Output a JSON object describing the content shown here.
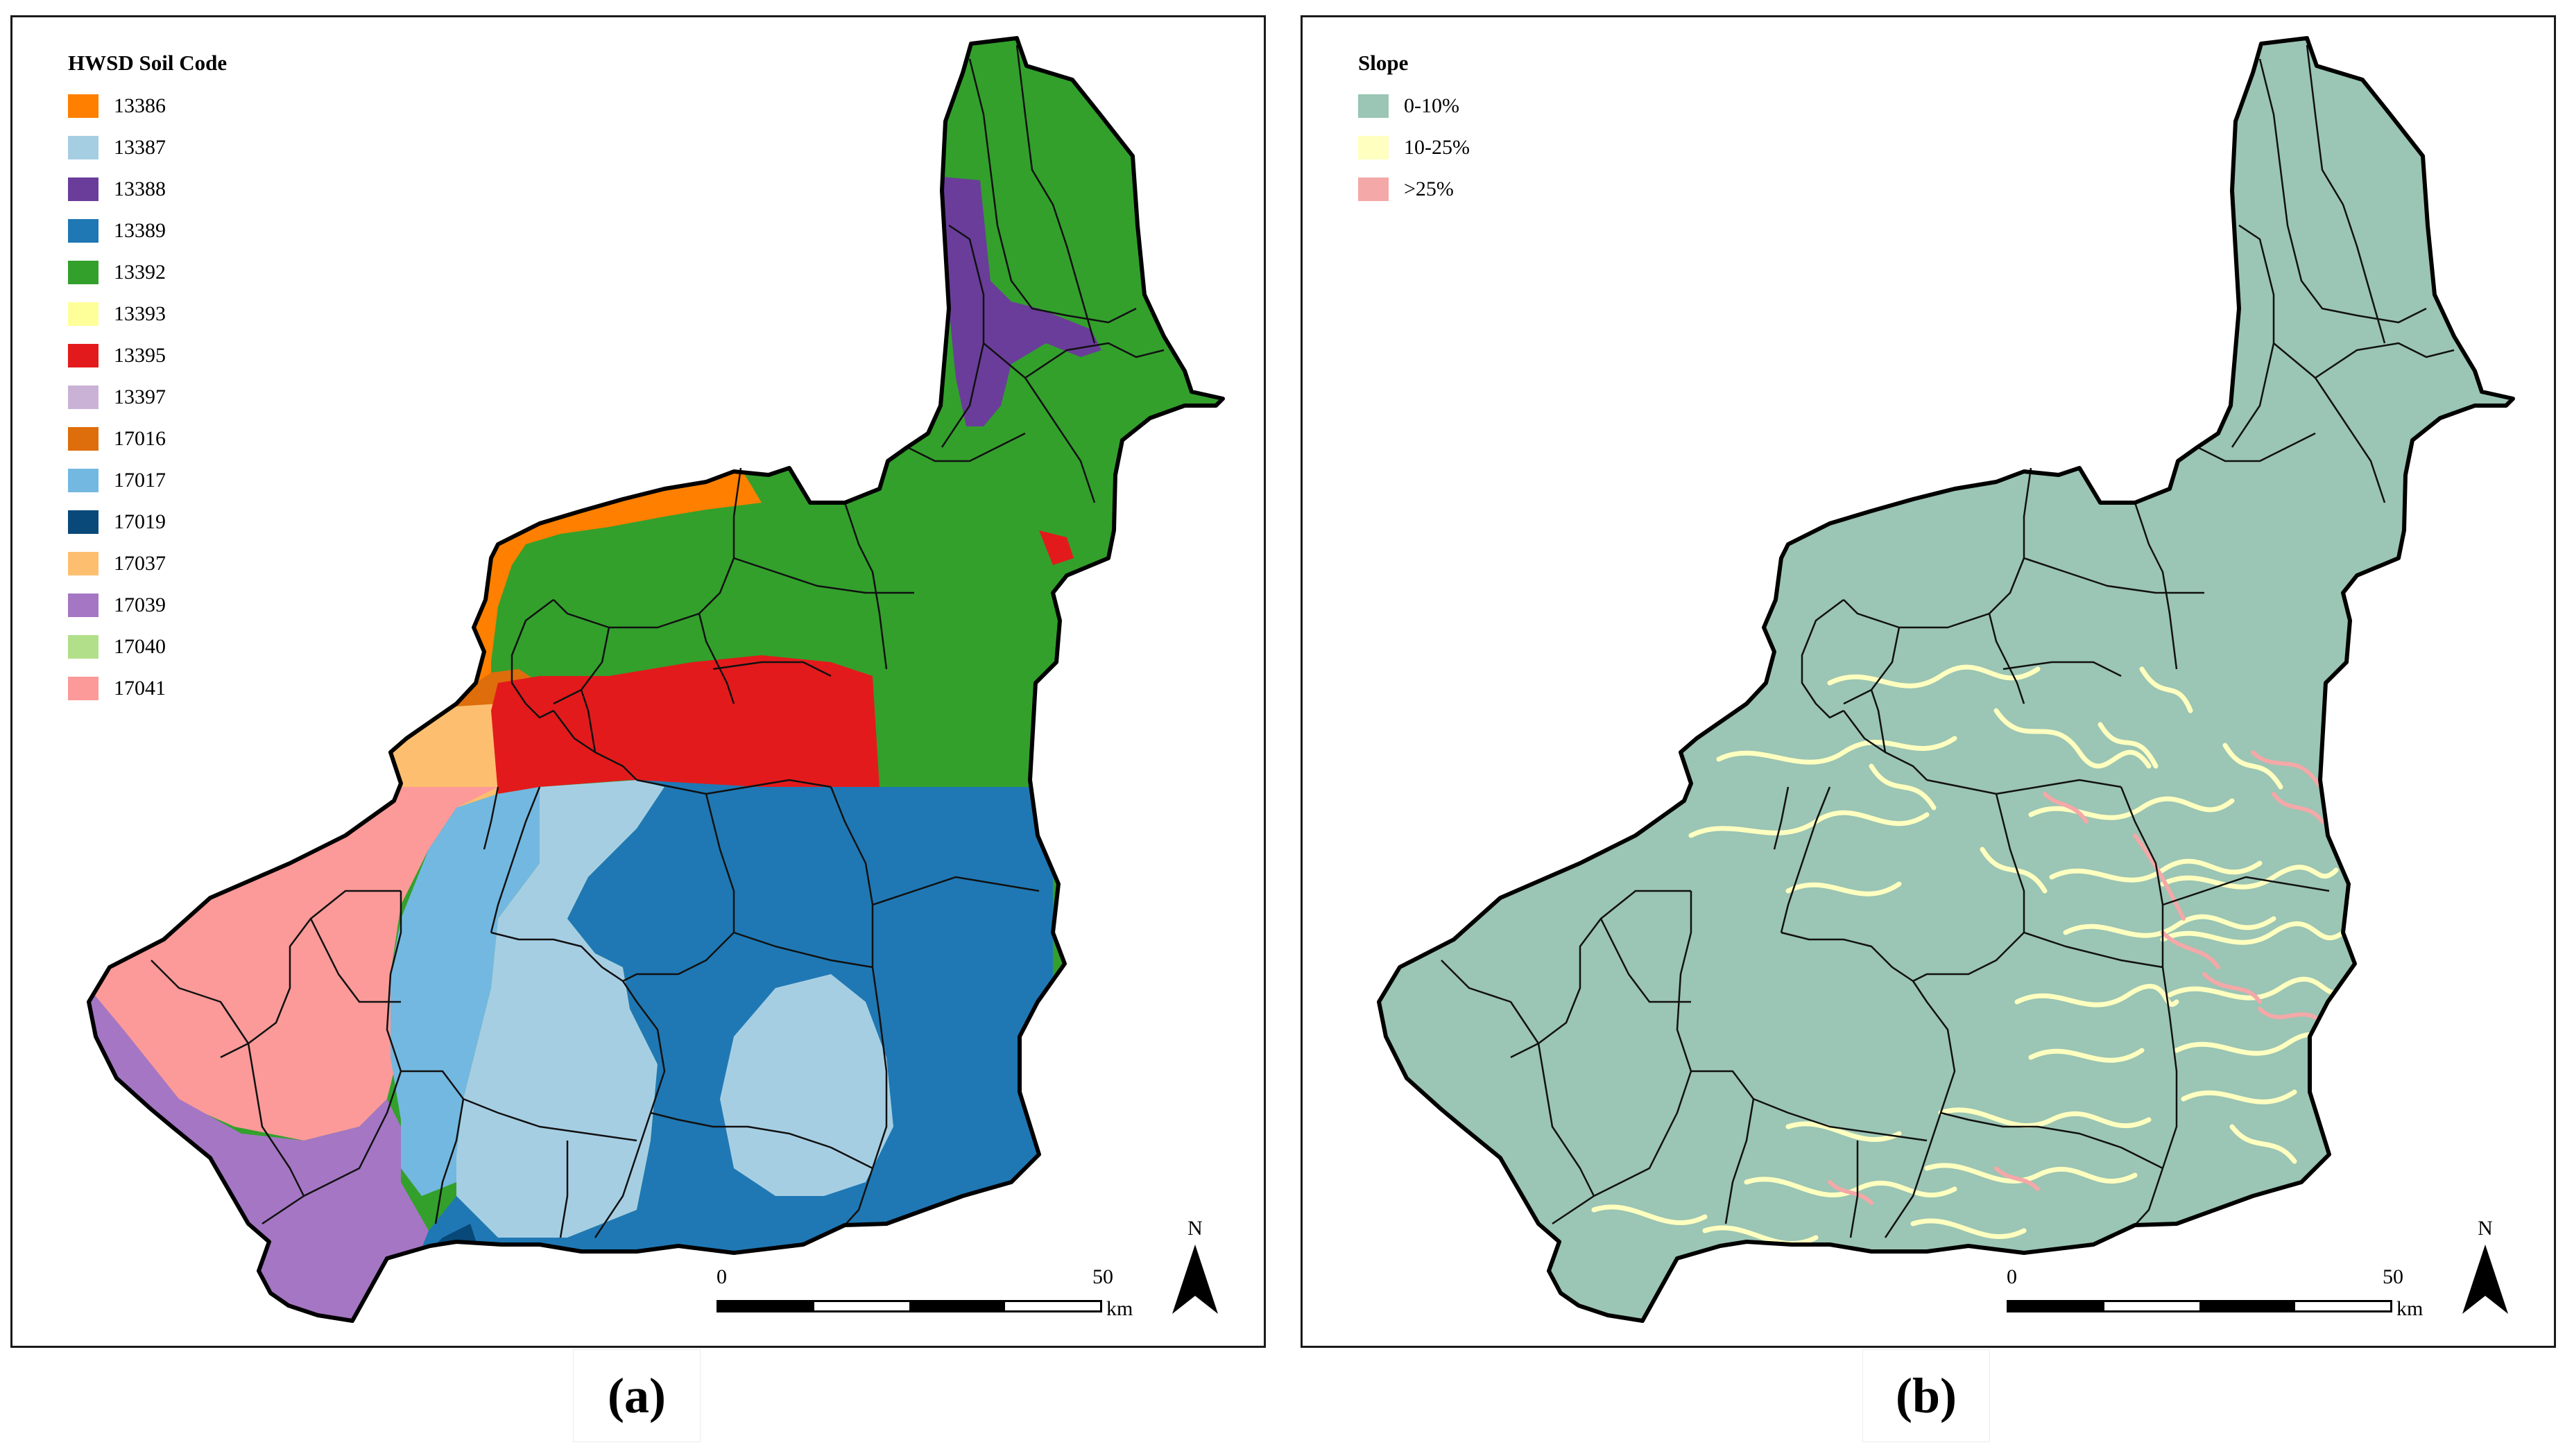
{
  "panels": [
    {
      "id": "a",
      "caption": "(a)",
      "legend": {
        "title": "HWSD Soil Code",
        "items": [
          {
            "label": "13386",
            "color": "#ff7f00"
          },
          {
            "label": "13387",
            "color": "#a6cee3"
          },
          {
            "label": "13388",
            "color": "#6a3d9a"
          },
          {
            "label": "13389",
            "color": "#1f78b4"
          },
          {
            "label": "13392",
            "color": "#33a02c"
          },
          {
            "label": "13393",
            "color": "#ffff99"
          },
          {
            "label": "13395",
            "color": "#e31a1c"
          },
          {
            "label": "13397",
            "color": "#cab2d6"
          },
          {
            "label": "17016",
            "color": "#de6d0c"
          },
          {
            "label": "17017",
            "color": "#73b8e0"
          },
          {
            "label": "17019",
            "color": "#08497a"
          },
          {
            "label": "17037",
            "color": "#fdbf6f"
          },
          {
            "label": "17039",
            "color": "#a576c4"
          },
          {
            "label": "17040",
            "color": "#b2df8a"
          },
          {
            "label": "17041",
            "color": "#fb9a99"
          }
        ]
      },
      "scale": {
        "start": "0",
        "end": "50",
        "unit": "km"
      },
      "north": "N"
    },
    {
      "id": "b",
      "caption": "(b)",
      "legend": {
        "title": "Slope",
        "items": [
          {
            "label": "0-10%",
            "color": "#9bc5b4"
          },
          {
            "label": "10-25%",
            "color": "#ffffc0"
          },
          {
            "label": ">25%",
            "color": "#f4a8a8"
          }
        ]
      },
      "scale": {
        "start": "0",
        "end": "50",
        "unit": "km"
      },
      "north": "N"
    }
  ]
}
